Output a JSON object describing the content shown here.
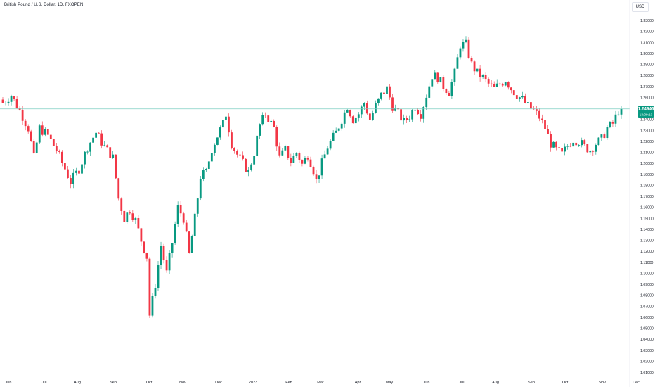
{
  "header": {
    "symbol_title": "British Pound / U.S. Dollar, 1D, FXOPEN",
    "currency_label": "USD"
  },
  "price_badge": {
    "price": "1.24946",
    "countdown": "13:09:15",
    "color": "#089981"
  },
  "colors": {
    "up": "#089981",
    "down": "#f23645",
    "reference_line": "#7fcfc2",
    "axis_text": "#131722",
    "grid_border": "#e0e3eb"
  },
  "chart_data": {
    "type": "candlestick",
    "title": "British Pound / U.S. Dollar, 1D, FXOPEN",
    "ylim": [
      1.0,
      1.34
    ],
    "y_ticks": [
      "1.33000",
      "1.32000",
      "1.31000",
      "1.30000",
      "1.29000",
      "1.28000",
      "1.27000",
      "1.26000",
      "1.25000",
      "1.24000",
      "1.23000",
      "1.22000",
      "1.21000",
      "1.20000",
      "1.19000",
      "1.18000",
      "1.17000",
      "1.16000",
      "1.15000",
      "1.14000",
      "1.13000",
      "1.12000",
      "1.11000",
      "1.10000",
      "1.09000",
      "1.08000",
      "1.07000",
      "1.06000",
      "1.05000",
      "1.04000",
      "1.03000",
      "1.02000",
      "1.01000"
    ],
    "x_ticks": [
      "Jun",
      "Jul",
      "Aug",
      "Sep",
      "Oct",
      "Nov",
      "Dec",
      "2023",
      "Feb",
      "Mar",
      "Apr",
      "May",
      "Jun",
      "Jul",
      "Aug",
      "Sep",
      "Oct",
      "Nov",
      "Dec"
    ],
    "last_price": 1.24946,
    "reference_price": 1.2495,
    "close_path": [
      [
        0,
        1.255
      ],
      [
        3,
        1.262
      ],
      [
        6,
        1.248
      ],
      [
        9,
        1.232
      ],
      [
        11,
        1.205
      ],
      [
        13,
        1.232
      ],
      [
        16,
        1.225
      ],
      [
        19,
        1.212
      ],
      [
        22,
        1.195
      ],
      [
        24,
        1.183
      ],
      [
        27,
        1.195
      ],
      [
        30,
        1.215
      ],
      [
        33,
        1.228
      ],
      [
        36,
        1.215
      ],
      [
        39,
        1.205
      ],
      [
        41,
        1.168
      ],
      [
        43,
        1.15
      ],
      [
        45,
        1.158
      ],
      [
        47,
        1.148
      ],
      [
        49,
        1.13
      ],
      [
        51,
        1.115
      ],
      [
        52,
        1.062
      ],
      [
        54,
        1.09
      ],
      [
        56,
        1.125
      ],
      [
        58,
        1.1
      ],
      [
        60,
        1.128
      ],
      [
        62,
        1.16
      ],
      [
        64,
        1.15
      ],
      [
        66,
        1.117
      ],
      [
        68,
        1.15
      ],
      [
        70,
        1.188
      ],
      [
        72,
        1.192
      ],
      [
        74,
        1.213
      ],
      [
        76,
        1.225
      ],
      [
        78,
        1.236
      ],
      [
        79,
        1.245
      ],
      [
        81,
        1.218
      ],
      [
        83,
        1.208
      ],
      [
        85,
        1.2
      ],
      [
        87,
        1.192
      ],
      [
        89,
        1.21
      ],
      [
        91,
        1.235
      ],
      [
        93,
        1.245
      ],
      [
        96,
        1.232
      ],
      [
        98,
        1.205
      ],
      [
        100,
        1.212
      ],
      [
        102,
        1.202
      ],
      [
        104,
        1.21
      ],
      [
        106,
        1.199
      ],
      [
        108,
        1.208
      ],
      [
        110,
        1.194
      ],
      [
        111,
        1.184
      ],
      [
        113,
        1.2
      ],
      [
        115,
        1.215
      ],
      [
        118,
        1.228
      ],
      [
        120,
        1.24
      ],
      [
        122,
        1.252
      ],
      [
        124,
        1.24
      ],
      [
        126,
        1.245
      ],
      [
        128,
        1.255
      ],
      [
        130,
        1.24
      ],
      [
        132,
        1.252
      ],
      [
        134,
        1.262
      ],
      [
        136,
        1.268
      ],
      [
        138,
        1.252
      ],
      [
        140,
        1.245
      ],
      [
        142,
        1.238
      ],
      [
        144,
        1.243
      ],
      [
        146,
        1.252
      ],
      [
        148,
        1.245
      ],
      [
        150,
        1.262
      ],
      [
        152,
        1.28
      ],
      [
        154,
        1.278
      ],
      [
        156,
        1.27
      ],
      [
        158,
        1.265
      ],
      [
        160,
        1.282
      ],
      [
        162,
        1.308
      ],
      [
        164,
        1.308
      ],
      [
        166,
        1.29
      ],
      [
        168,
        1.282
      ],
      [
        170,
        1.278
      ],
      [
        172,
        1.272
      ],
      [
        174,
        1.268
      ],
      [
        176,
        1.272
      ],
      [
        178,
        1.276
      ],
      [
        180,
        1.268
      ],
      [
        182,
        1.262
      ],
      [
        184,
        1.258
      ],
      [
        186,
        1.252
      ],
      [
        188,
        1.248
      ],
      [
        190,
        1.242
      ],
      [
        192,
        1.232
      ],
      [
        194,
        1.218
      ],
      [
        196,
        1.212
      ],
      [
        198,
        1.208
      ],
      [
        200,
        1.216
      ],
      [
        202,
        1.222
      ],
      [
        204,
        1.22
      ],
      [
        206,
        1.215
      ],
      [
        208,
        1.212
      ],
      [
        210,
        1.218
      ],
      [
        212,
        1.222
      ],
      [
        214,
        1.232
      ],
      [
        216,
        1.236
      ],
      [
        218,
        1.248
      ],
      [
        219,
        1.24946
      ]
    ]
  }
}
